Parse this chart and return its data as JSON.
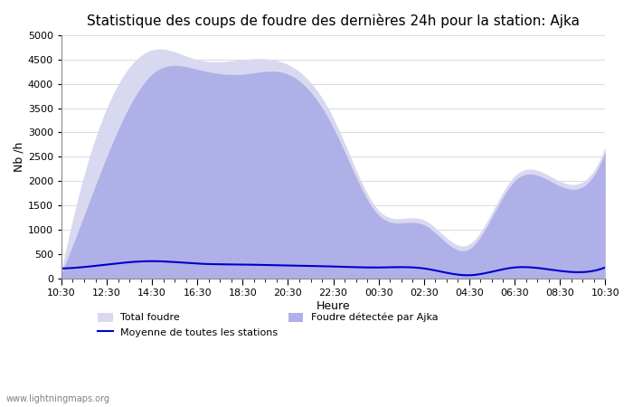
{
  "title": "Statistique des coups de foudre des dernières 24h pour la station: Ajka",
  "xlabel": "Heure",
  "ylabel": "Nb /h",
  "ylim": [
    0,
    5000
  ],
  "yticks": [
    0,
    500,
    1000,
    1500,
    2000,
    2500,
    3000,
    3500,
    4000,
    4500,
    5000
  ],
  "x_labels": [
    "10:30",
    "12:30",
    "14:30",
    "16:30",
    "18:30",
    "20:30",
    "22:30",
    "00:30",
    "02:30",
    "04:30",
    "06:30",
    "08:30",
    "10:30"
  ],
  "background_color": "#ffffff",
  "plot_bg_color": "#ffffff",
  "watermark": "www.lightningmaps.org",
  "legend": [
    {
      "label": "Total foudre",
      "color": "#d8d8f0",
      "type": "fill"
    },
    {
      "label": "Moyenne de toutes les stations",
      "color": "#0000cc",
      "type": "line"
    },
    {
      "label": "Foudre détectée par Ajka",
      "color": "#a0a0e0",
      "type": "fill"
    }
  ],
  "total_foudre": [
    150,
    3500,
    4700,
    4500,
    4500,
    4400,
    3300,
    1400,
    1200,
    700,
    2100,
    2000,
    2700
  ],
  "foudre_ajka": [
    100,
    2500,
    4200,
    4300,
    4200,
    4200,
    3100,
    1300,
    1100,
    600,
    2000,
    1900,
    2600
  ],
  "moyenne": [
    200,
    280,
    350,
    300,
    280,
    260,
    240,
    220,
    200,
    60,
    220,
    150,
    220
  ]
}
